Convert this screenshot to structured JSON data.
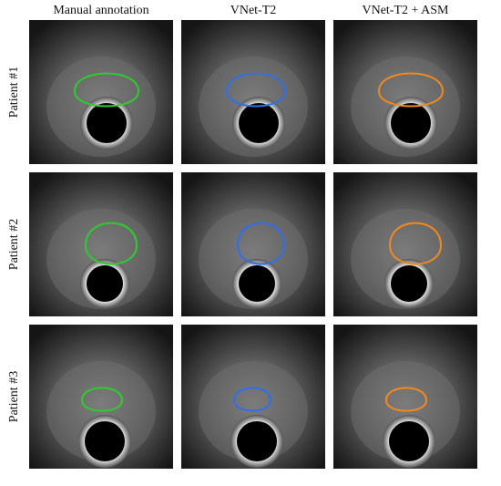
{
  "columns": [
    "Manual annotation",
    "VNet-T2",
    "VNet-T2 + ASM"
  ],
  "rows": [
    "Patient #1",
    "Patient #2",
    "Patient #3"
  ]
}
